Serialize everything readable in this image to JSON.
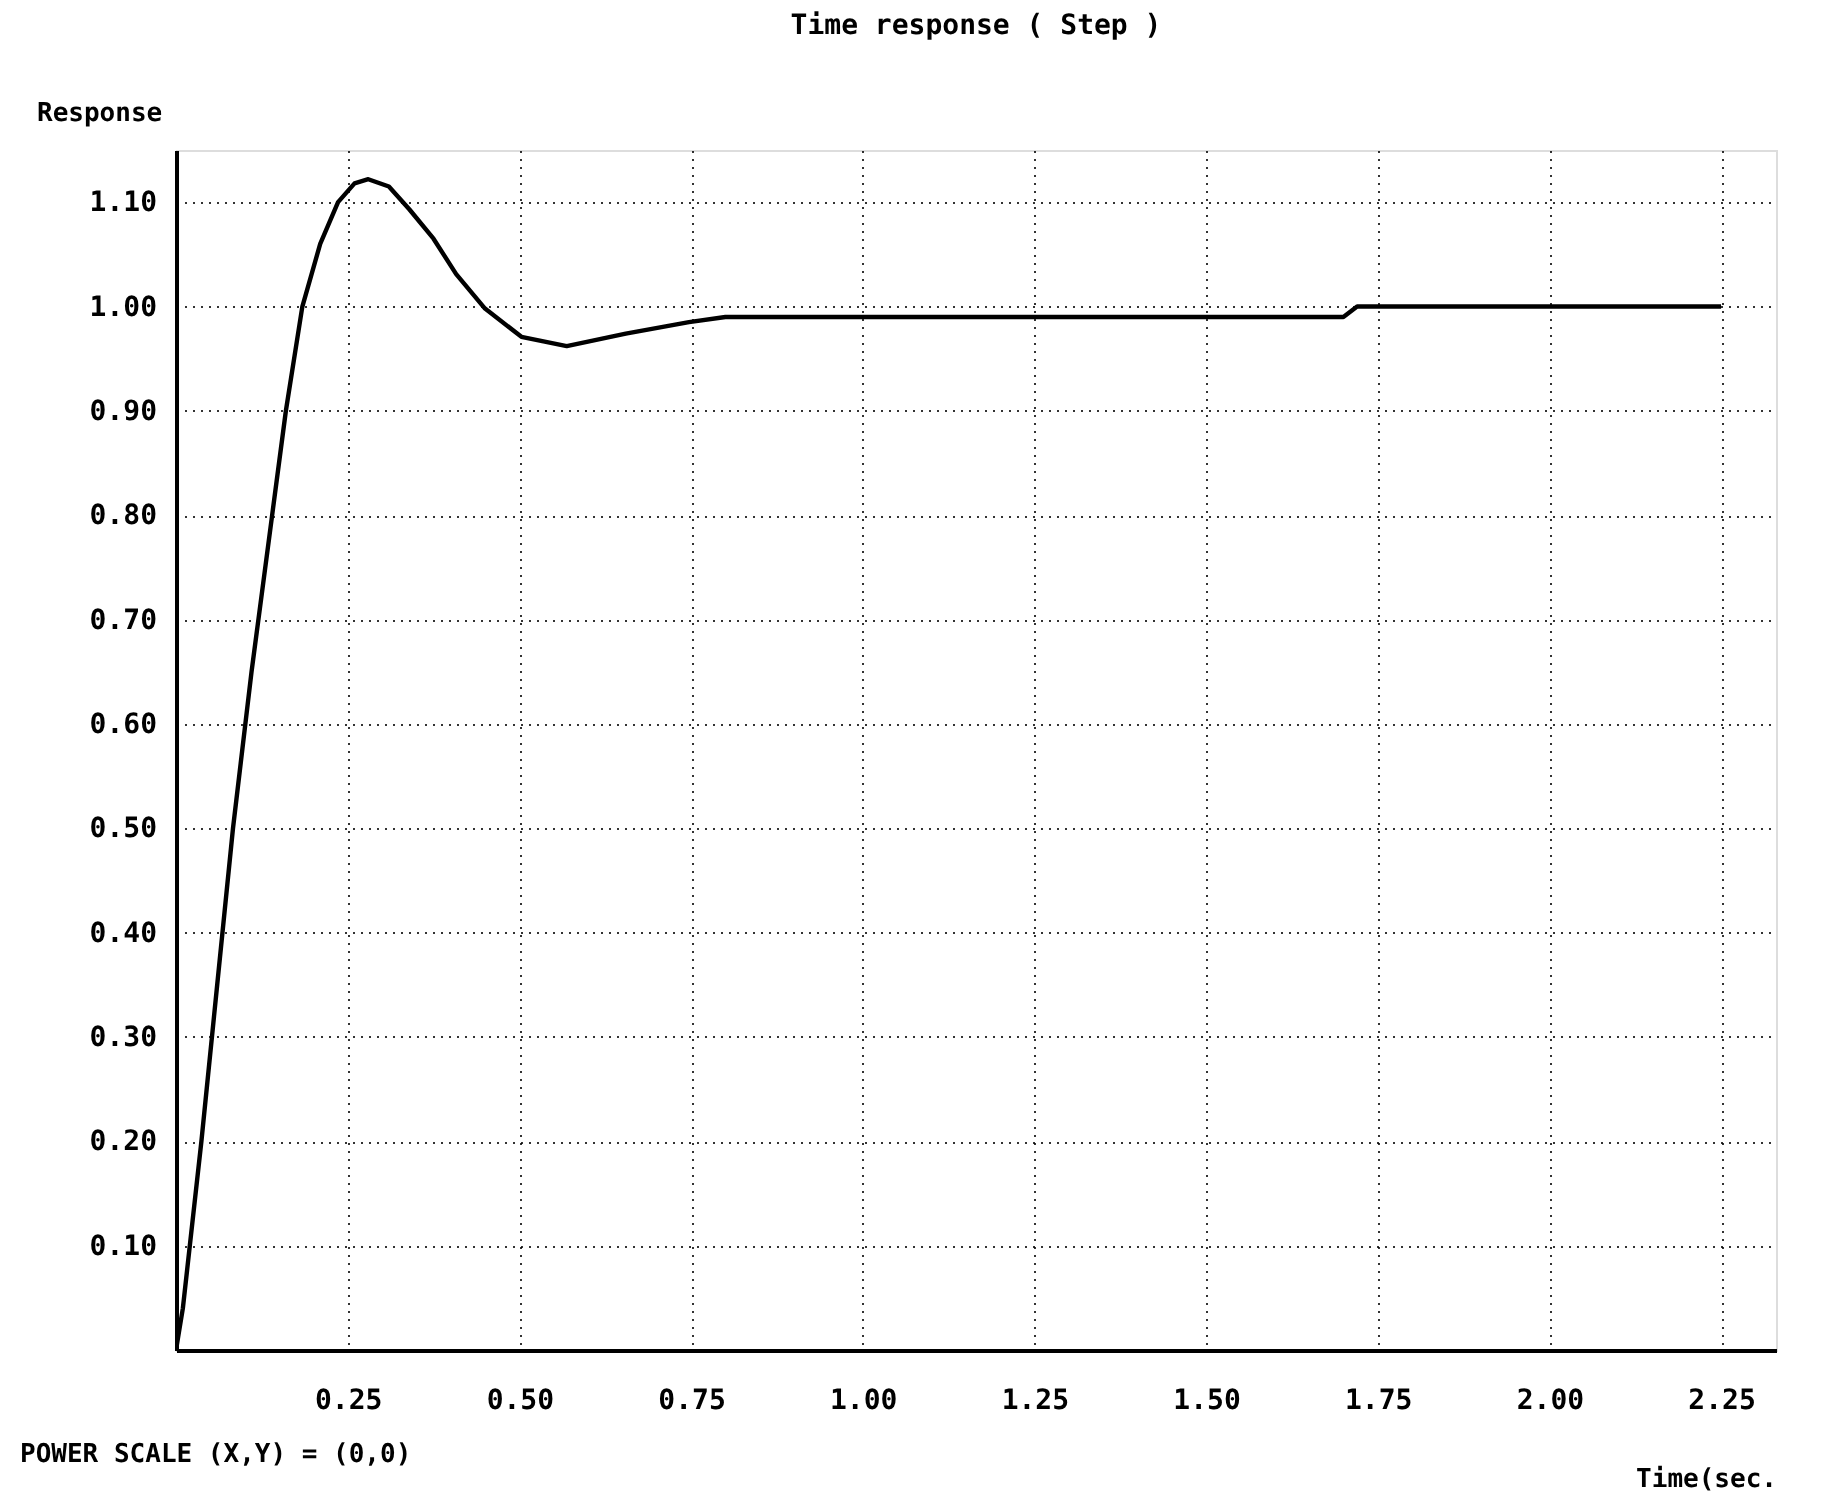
{
  "chart_data": {
    "type": "line",
    "title": "Time response ( Step )",
    "ylabel": "Response",
    "xlabel": "Time(sec.",
    "annotations": [
      "POWER SCALE (X,Y) = (0,0)"
    ],
    "x": [
      0,
      0.01,
      0.037,
      0.06,
      0.083,
      0.11,
      0.14,
      0.16,
      0.184,
      0.21,
      0.236,
      0.26,
      0.28,
      0.31,
      0.34,
      0.375,
      0.408,
      0.45,
      0.503,
      0.569,
      0.655,
      0.747,
      0.8,
      1.0,
      1.25,
      1.5,
      1.7,
      1.72,
      2.0,
      2.25
    ],
    "series": [
      {
        "color": "#000000",
        "values": [
          0,
          0.04,
          0.2,
          0.35,
          0.5,
          0.65,
          0.8,
          0.9,
          1.0,
          1.06,
          1.1,
          1.118,
          1.122,
          1.115,
          1.093,
          1.065,
          1.031,
          0.998,
          0.971,
          0.962,
          0.974,
          0.985,
          0.99,
          0.99,
          0.99,
          0.99,
          0.99,
          1.0,
          1.0,
          1.0
        ]
      }
    ],
    "xlim": [
      0,
      2.33
    ],
    "ylim": [
      0,
      1.15
    ],
    "xticks": [
      0.25,
      {
        "value": 0.5,
        "label": "0.50"
      },
      0.75,
      {
        "value": 1.0,
        "label": "1.00"
      },
      1.25,
      {
        "value": 1.5,
        "label": "1.50"
      },
      1.75,
      {
        "value": 2.0,
        "label": "2.00"
      },
      2.25
    ],
    "yticks": [
      {
        "value": 0.1,
        "label": "0.10"
      },
      {
        "value": 0.2,
        "label": "0.20"
      },
      {
        "value": 0.3,
        "label": "0.30"
      },
      {
        "value": 0.4,
        "label": "0.40"
      },
      {
        "value": 0.5,
        "label": "0.50"
      },
      {
        "value": 0.6,
        "label": "0.60"
      },
      {
        "value": 0.7,
        "label": "0.70"
      },
      {
        "value": 0.8,
        "label": "0.80"
      },
      {
        "value": 0.9,
        "label": "0.90"
      },
      {
        "value": 1.0,
        "label": "1.00"
      },
      {
        "value": 1.1,
        "label": "1.10"
      }
    ],
    "grid": true,
    "marker": "none",
    "line_style": "solid"
  }
}
